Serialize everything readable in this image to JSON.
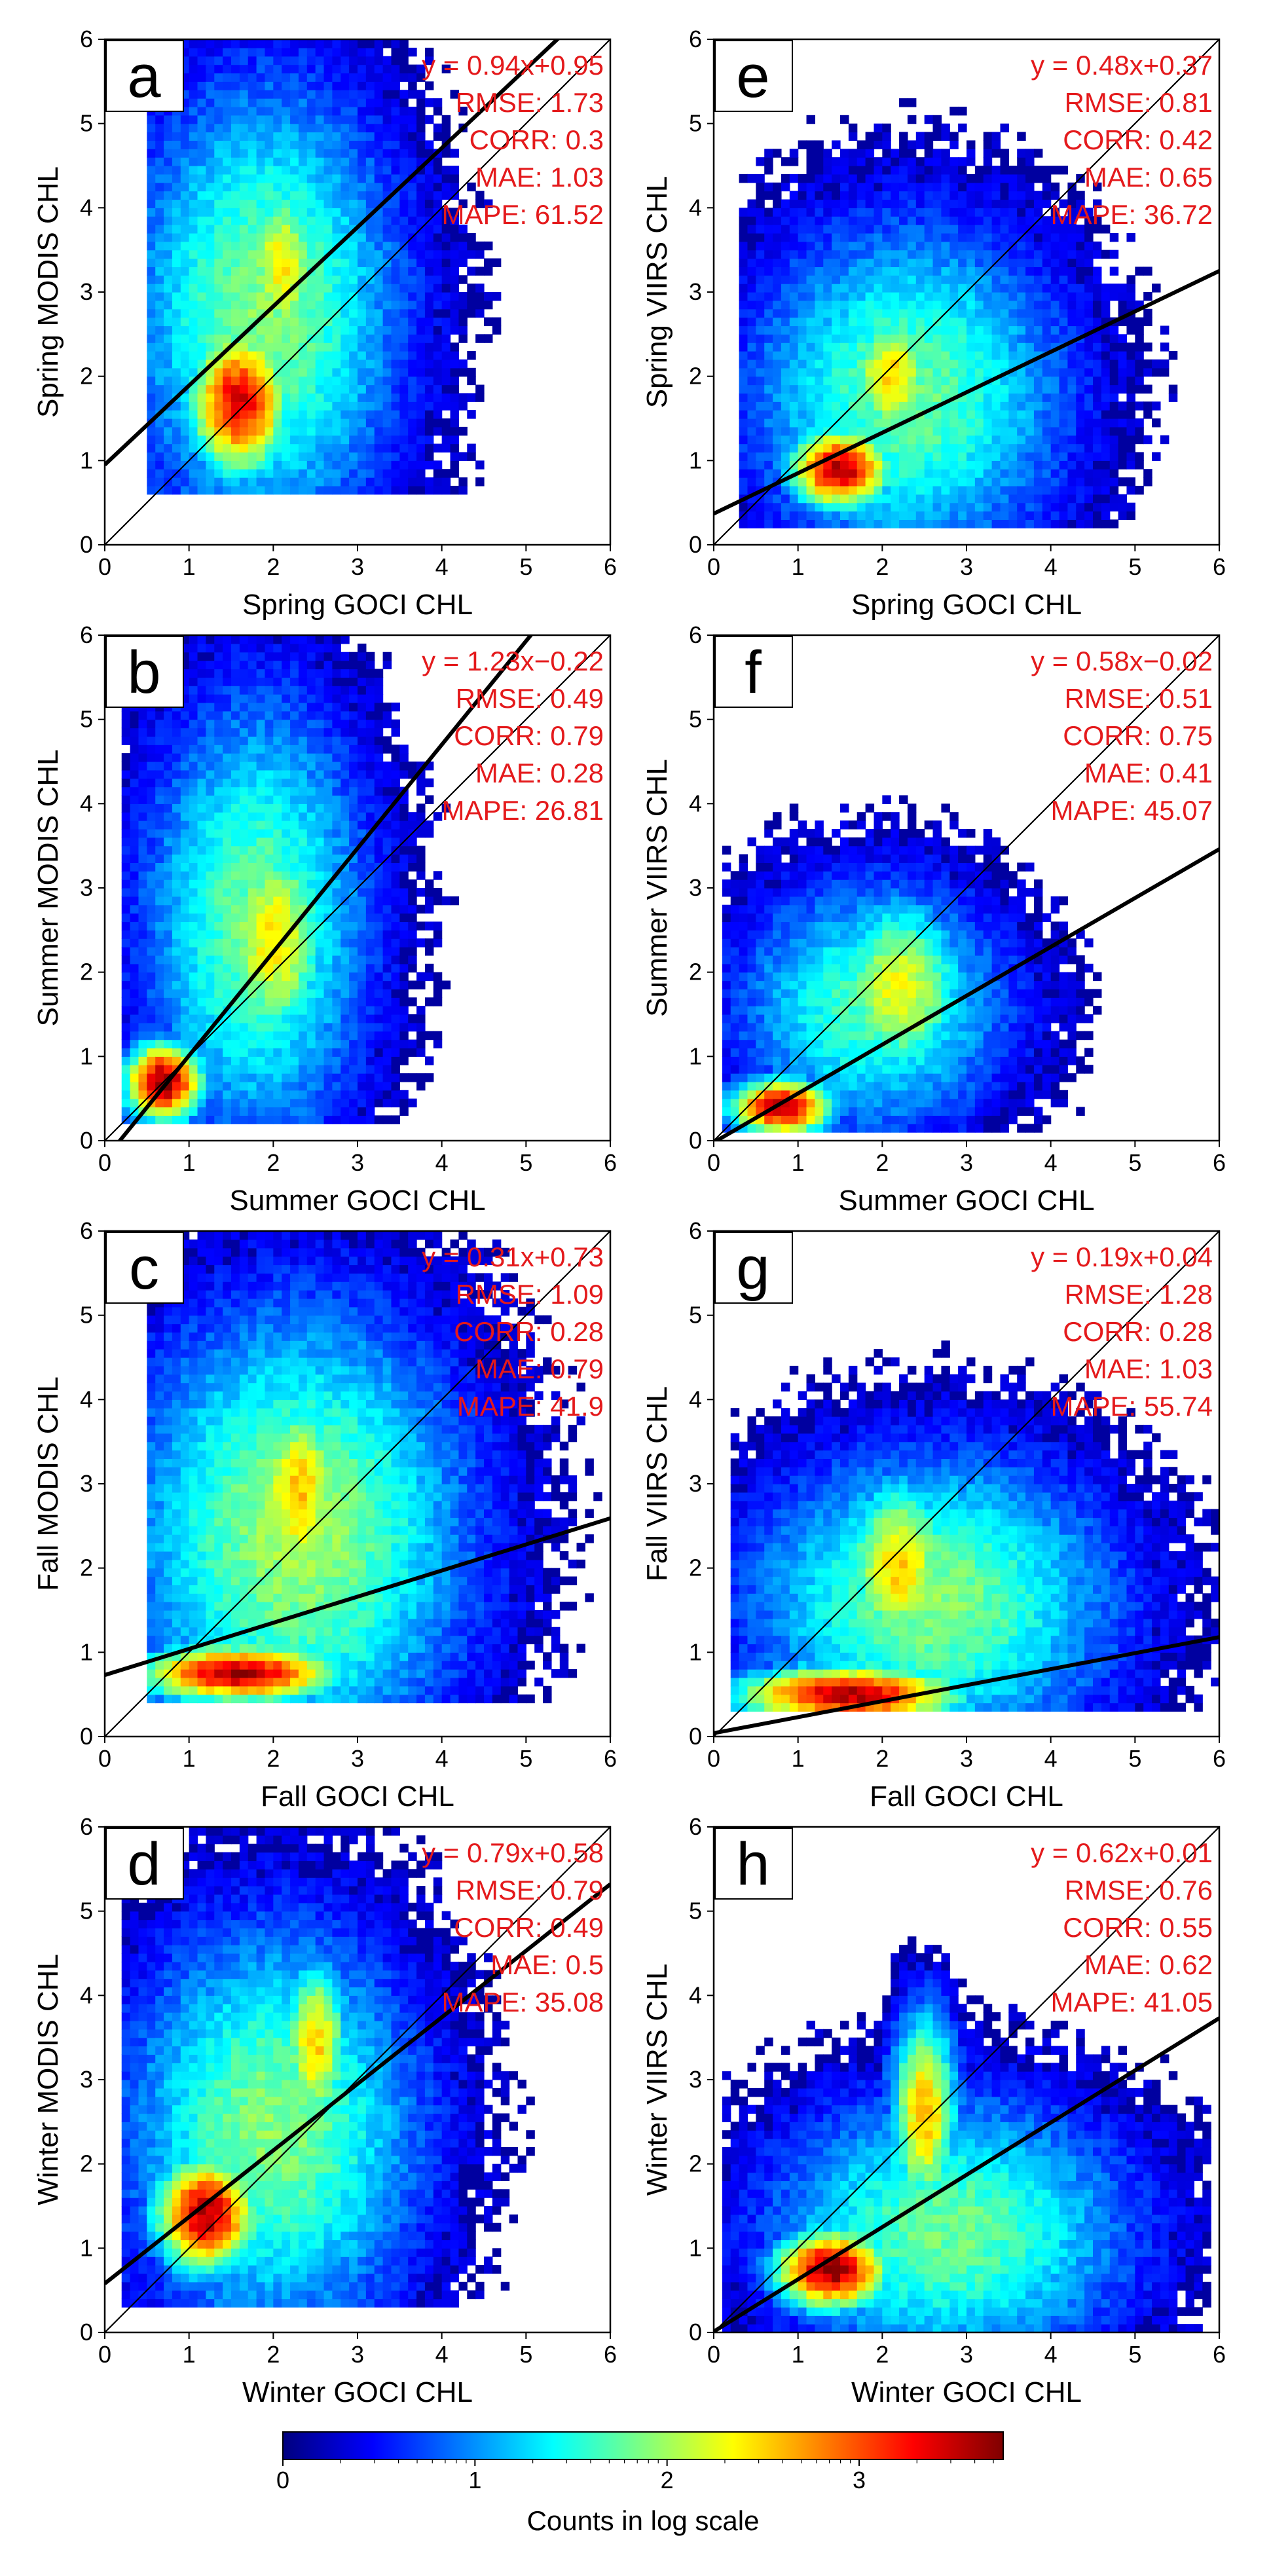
{
  "chart_data": {
    "type": "heatmap",
    "description_kind": "2D density scatter (log-scaled counts) of satellite chlorophyll matchups",
    "colors": {
      "stats_text": "#e41a1c",
      "regression_line": "#000000",
      "one_to_one_line": "#000000"
    },
    "colorbar": {
      "label": "Counts in log scale",
      "ticks": [
        "0",
        "1",
        "2",
        "3"
      ],
      "range": [
        0,
        3.75
      ],
      "colormap": "jet"
    },
    "panels": [
      {
        "letter": "a",
        "xlabel": "Spring GOCI CHL",
        "ylabel": "Spring MODIS CHL",
        "xlim": [
          0,
          6
        ],
        "ylim": [
          0,
          6
        ],
        "xticks": [
          "0",
          "1",
          "2",
          "3",
          "4",
          "5",
          "6"
        ],
        "yticks": [
          "0",
          "1",
          "2",
          "3",
          "4",
          "5",
          "6"
        ],
        "fit": {
          "slope": 0.94,
          "intercept": 0.95
        },
        "stats": [
          "y = 0.94x+0.95",
          "RMSE: 1.73",
          "CORR: 0.3",
          "MAE: 1.03",
          "MAPE: 61.52"
        ],
        "density": {
          "blobs": [
            {
              "x": 1.6,
              "y": 1.7,
              "sx": 0.45,
              "sy": 0.65,
              "a": 3.4
            },
            {
              "x": 2.1,
              "y": 3.3,
              "sx": 0.35,
              "sy": 0.8,
              "a": 2.4
            }
          ],
          "spread": {
            "x": 1.9,
            "y": 2.8,
            "sx": 1.2,
            "sy": 2.0,
            "a": 1.9
          },
          "xmin": 0.5,
          "xmax": 5.6,
          "ymin": 0.65,
          "ymax": 6
        }
      },
      {
        "letter": "e",
        "xlabel": "Spring GOCI CHL",
        "ylabel": "Spring VIIRS CHL",
        "xlim": [
          0,
          6
        ],
        "ylim": [
          0,
          6
        ],
        "xticks": [
          "0",
          "1",
          "2",
          "3",
          "4",
          "5",
          "6"
        ],
        "yticks": [
          "0",
          "1",
          "2",
          "3",
          "4",
          "5",
          "6"
        ],
        "fit": {
          "slope": 0.48,
          "intercept": 0.37
        },
        "stats": [
          "y = 0.48x+0.37",
          "RMSE: 0.81",
          "CORR: 0.42",
          "MAE: 0.65",
          "MAPE: 36.72"
        ],
        "density": {
          "blobs": [
            {
              "x": 1.5,
              "y": 0.9,
              "sx": 0.45,
              "sy": 0.35,
              "a": 3.6
            },
            {
              "x": 2.1,
              "y": 2.0,
              "sx": 0.4,
              "sy": 0.6,
              "a": 2.5
            }
          ],
          "spread": {
            "x": 2.3,
            "y": 1.8,
            "sx": 1.4,
            "sy": 1.5,
            "a": 1.8
          },
          "xmin": 0.3,
          "xmax": 5.8,
          "ymin": 0.25,
          "ymax": 6
        }
      },
      {
        "letter": "b",
        "xlabel": "Summer GOCI CHL",
        "ylabel": "Summer MODIS CHL",
        "xlim": [
          0,
          6
        ],
        "ylim": [
          0,
          6
        ],
        "xticks": [
          "0",
          "1",
          "2",
          "3",
          "4",
          "5",
          "6"
        ],
        "yticks": [
          "0",
          "1",
          "2",
          "3",
          "4",
          "5",
          "6"
        ],
        "fit": {
          "slope": 1.23,
          "intercept": -0.22
        },
        "stats": [
          "y = 1.23x−0.22",
          "RMSE: 0.49",
          "CORR: 0.79",
          "MAE: 0.28",
          "MAPE: 26.81"
        ],
        "density": {
          "blobs": [
            {
              "x": 0.7,
              "y": 0.7,
              "sx": 0.35,
              "sy": 0.35,
              "a": 3.7
            },
            {
              "x": 2.0,
              "y": 2.4,
              "sx": 0.5,
              "sy": 1.0,
              "a": 2.4
            }
          ],
          "spread": {
            "x": 1.8,
            "y": 2.6,
            "sx": 1.0,
            "sy": 2.0,
            "a": 1.8
          },
          "xmin": 0.2,
          "xmax": 5.5,
          "ymin": 0.2,
          "ymax": 6
        }
      },
      {
        "letter": "f",
        "xlabel": "Summer GOCI CHL",
        "ylabel": "Summer VIIRS CHL",
        "xlim": [
          0,
          6
        ],
        "ylim": [
          0,
          6
        ],
        "xticks": [
          "0",
          "1",
          "2",
          "3",
          "4",
          "5",
          "6"
        ],
        "yticks": [
          "0",
          "1",
          "2",
          "3",
          "4",
          "5",
          "6"
        ],
        "fit": {
          "slope": 0.58,
          "intercept": -0.02
        },
        "stats": [
          "y = 0.58x−0.02",
          "RMSE: 0.51",
          "CORR: 0.75",
          "MAE: 0.41",
          "MAPE: 45.07"
        ],
        "density": {
          "blobs": [
            {
              "x": 0.8,
              "y": 0.4,
              "sx": 0.45,
              "sy": 0.25,
              "a": 3.6
            },
            {
              "x": 2.2,
              "y": 1.8,
              "sx": 0.6,
              "sy": 0.8,
              "a": 2.3
            }
          ],
          "spread": {
            "x": 1.9,
            "y": 1.6,
            "sx": 1.2,
            "sy": 1.1,
            "a": 1.7
          },
          "xmin": 0.1,
          "xmax": 5.9,
          "ymin": 0.1,
          "ymax": 6
        }
      },
      {
        "letter": "c",
        "xlabel": "Fall GOCI CHL",
        "ylabel": "Fall MODIS CHL",
        "xlim": [
          0,
          6
        ],
        "ylim": [
          0,
          6
        ],
        "xticks": [
          "0",
          "1",
          "2",
          "3",
          "4",
          "5",
          "6"
        ],
        "yticks": [
          "0",
          "1",
          "2",
          "3",
          "4",
          "5",
          "6"
        ],
        "fit": {
          "slope": 0.31,
          "intercept": 0.73
        },
        "stats": [
          "y = 0.31x+0.73",
          "RMSE: 1.09",
          "CORR: 0.28",
          "MAE: 0.79",
          "MAPE: 41.9"
        ],
        "density": {
          "blobs": [
            {
              "x": 1.6,
              "y": 0.75,
              "sx": 0.9,
              "sy": 0.25,
              "a": 3.6
            },
            {
              "x": 2.3,
              "y": 2.9,
              "sx": 0.4,
              "sy": 0.9,
              "a": 2.6
            }
          ],
          "spread": {
            "x": 2.3,
            "y": 2.4,
            "sx": 1.5,
            "sy": 2.0,
            "a": 2.0
          },
          "xmin": 0.5,
          "xmax": 6,
          "ymin": 0.45,
          "ymax": 6
        }
      },
      {
        "letter": "g",
        "xlabel": "Fall GOCI CHL",
        "ylabel": "Fall VIIRS CHL",
        "xlim": [
          0,
          6
        ],
        "ylim": [
          0,
          6
        ],
        "xticks": [
          "0",
          "1",
          "2",
          "3",
          "4",
          "5",
          "6"
        ],
        "yticks": [
          "0",
          "1",
          "2",
          "3",
          "4",
          "5",
          "6"
        ],
        "fit": {
          "slope": 0.19,
          "intercept": 0.04
        },
        "stats": [
          "y = 0.19x+0.04",
          "RMSE: 1.28",
          "CORR: 0.28",
          "MAE: 1.03",
          "MAPE: 55.74"
        ],
        "density": {
          "blobs": [
            {
              "x": 1.6,
              "y": 0.5,
              "sx": 1.0,
              "sy": 0.25,
              "a": 3.6
            },
            {
              "x": 2.2,
              "y": 2.0,
              "sx": 0.5,
              "sy": 0.8,
              "a": 2.5
            }
          ],
          "spread": {
            "x": 2.6,
            "y": 1.6,
            "sx": 1.6,
            "sy": 1.3,
            "a": 1.9
          },
          "xmin": 0.2,
          "xmax": 6,
          "ymin": 0.35,
          "ymax": 5
        }
      },
      {
        "letter": "d",
        "xlabel": "Winter GOCI CHL",
        "ylabel": "Winter MODIS CHL",
        "xlim": [
          0,
          6
        ],
        "ylim": [
          0,
          6
        ],
        "xticks": [
          "0",
          "1",
          "2",
          "3",
          "4",
          "5",
          "6"
        ],
        "yticks": [
          "0",
          "1",
          "2",
          "3",
          "4",
          "5",
          "6"
        ],
        "fit": {
          "slope": 0.79,
          "intercept": 0.58
        },
        "stats": [
          "y = 0.79x+0.58",
          "RMSE: 0.79",
          "CORR: 0.49",
          "MAE: 0.5",
          "MAPE: 35.08"
        ],
        "density": {
          "blobs": [
            {
              "x": 1.2,
              "y": 1.4,
              "sx": 0.45,
              "sy": 0.5,
              "a": 3.6
            },
            {
              "x": 2.5,
              "y": 3.4,
              "sx": 0.3,
              "sy": 0.8,
              "a": 2.5
            }
          ],
          "spread": {
            "x": 2.0,
            "y": 2.4,
            "sx": 1.3,
            "sy": 1.8,
            "a": 1.9
          },
          "xmin": 0.2,
          "xmax": 5.7,
          "ymin": 0.3,
          "ymax": 6
        }
      },
      {
        "letter": "h",
        "xlabel": "Winter GOCI CHL",
        "ylabel": "Winter VIIRS CHL",
        "xlim": [
          0,
          6
        ],
        "ylim": [
          0,
          6
        ],
        "xticks": [
          "0",
          "1",
          "2",
          "3",
          "4",
          "5",
          "6"
        ],
        "yticks": [
          "0",
          "1",
          "2",
          "3",
          "4",
          "5",
          "6"
        ],
        "fit": {
          "slope": 0.62,
          "intercept": 0.01
        },
        "stats": [
          "y = 0.62x+0.01",
          "RMSE: 0.76",
          "CORR: 0.55",
          "MAE: 0.62",
          "MAPE: 41.05"
        ],
        "density": {
          "blobs": [
            {
              "x": 1.4,
              "y": 0.75,
              "sx": 0.5,
              "sy": 0.35,
              "a": 3.7
            },
            {
              "x": 2.5,
              "y": 2.6,
              "sx": 0.3,
              "sy": 0.9,
              "a": 2.6
            }
          ],
          "spread": {
            "x": 2.8,
            "y": 1.2,
            "sx": 1.6,
            "sy": 1.2,
            "a": 1.8
          },
          "xmin": 0.1,
          "xmax": 5.9,
          "ymin": 0.05,
          "ymax": 6
        }
      }
    ]
  }
}
